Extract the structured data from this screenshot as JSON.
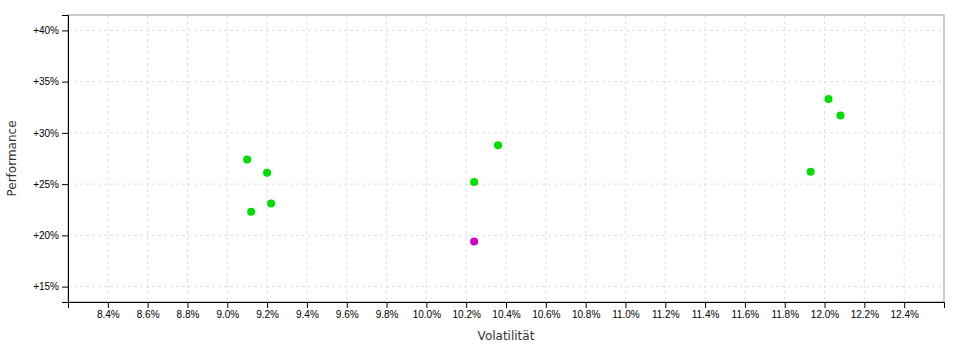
{
  "chart_data": {
    "type": "scatter",
    "xlabel": "Volatilität",
    "ylabel": "Performance",
    "x": [
      0.091,
      0.092,
      0.0912,
      0.0922,
      0.1024,
      0.1036,
      0.1024,
      0.1193,
      0.1202,
      0.1208
    ],
    "values": [
      0.274,
      0.261,
      0.223,
      0.231,
      0.252,
      0.288,
      0.194,
      0.262,
      0.333,
      0.317
    ],
    "colors": [
      "#00dd00",
      "#00dd00",
      "#00dd00",
      "#00dd00",
      "#00dd00",
      "#00dd00",
      "#cc00cc",
      "#00dd00",
      "#00dd00",
      "#00dd00"
    ],
    "xlim": [
      0.082,
      0.126
    ],
    "ylim": [
      0.135,
      0.415
    ],
    "xticks": [
      {
        "value": 0.084,
        "label": "8.4%"
      },
      {
        "value": 0.086,
        "label": "8.6%"
      },
      {
        "value": 0.088,
        "label": "8.8%"
      },
      {
        "value": 0.09,
        "label": "9.0%"
      },
      {
        "value": 0.092,
        "label": "9.2%"
      },
      {
        "value": 0.094,
        "label": "9.4%"
      },
      {
        "value": 0.096,
        "label": "9.6%"
      },
      {
        "value": 0.098,
        "label": "9.8%"
      },
      {
        "value": 0.1,
        "label": "10.0%"
      },
      {
        "value": 0.102,
        "label": "10.2%"
      },
      {
        "value": 0.104,
        "label": "10.4%"
      },
      {
        "value": 0.106,
        "label": "10.6%"
      },
      {
        "value": 0.108,
        "label": "10.8%"
      },
      {
        "value": 0.11,
        "label": "11.0%"
      },
      {
        "value": 0.112,
        "label": "11.2%"
      },
      {
        "value": 0.114,
        "label": "11.4%"
      },
      {
        "value": 0.116,
        "label": "11.6%"
      },
      {
        "value": 0.118,
        "label": "11.8%"
      },
      {
        "value": 0.12,
        "label": "12.0%"
      },
      {
        "value": 0.122,
        "label": "12.2%"
      },
      {
        "value": 0.124,
        "label": "12.4%"
      }
    ],
    "yticks": [
      {
        "value": 0.15,
        "label": "+15%"
      },
      {
        "value": 0.2,
        "label": "+20%"
      },
      {
        "value": 0.25,
        "label": "+25%"
      },
      {
        "value": 0.3,
        "label": "+30%"
      },
      {
        "value": 0.35,
        "label": "+35%"
      },
      {
        "value": 0.4,
        "label": "+40%"
      }
    ],
    "grid": true
  }
}
